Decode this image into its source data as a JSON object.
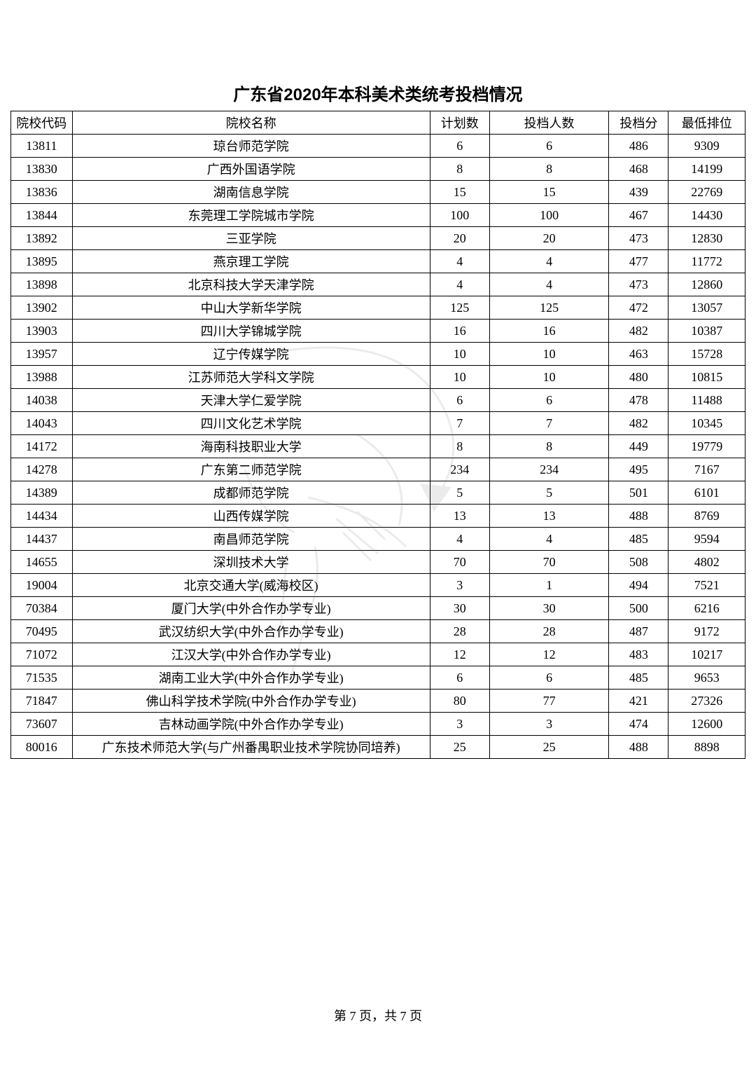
{
  "title": "广东省2020年本科美术类统考投档情况",
  "columns": [
    "院校代码",
    "院校名称",
    "计划数",
    "投档人数",
    "投档分",
    "最低排位"
  ],
  "column_widths": [
    "col-code",
    "col-name",
    "col-plan",
    "col-applicants",
    "col-score",
    "col-rank"
  ],
  "rows": [
    [
      "13811",
      "琼台师范学院",
      "6",
      "6",
      "486",
      "9309"
    ],
    [
      "13830",
      "广西外国语学院",
      "8",
      "8",
      "468",
      "14199"
    ],
    [
      "13836",
      "湖南信息学院",
      "15",
      "15",
      "439",
      "22769"
    ],
    [
      "13844",
      "东莞理工学院城市学院",
      "100",
      "100",
      "467",
      "14430"
    ],
    [
      "13892",
      "三亚学院",
      "20",
      "20",
      "473",
      "12830"
    ],
    [
      "13895",
      "燕京理工学院",
      "4",
      "4",
      "477",
      "11772"
    ],
    [
      "13898",
      "北京科技大学天津学院",
      "4",
      "4",
      "473",
      "12860"
    ],
    [
      "13902",
      "中山大学新华学院",
      "125",
      "125",
      "472",
      "13057"
    ],
    [
      "13903",
      "四川大学锦城学院",
      "16",
      "16",
      "482",
      "10387"
    ],
    [
      "13957",
      "辽宁传媒学院",
      "10",
      "10",
      "463",
      "15728"
    ],
    [
      "13988",
      "江苏师范大学科文学院",
      "10",
      "10",
      "480",
      "10815"
    ],
    [
      "14038",
      "天津大学仁爱学院",
      "6",
      "6",
      "478",
      "11488"
    ],
    [
      "14043",
      "四川文化艺术学院",
      "7",
      "7",
      "482",
      "10345"
    ],
    [
      "14172",
      "海南科技职业大学",
      "8",
      "8",
      "449",
      "19779"
    ],
    [
      "14278",
      "广东第二师范学院",
      "234",
      "234",
      "495",
      "7167"
    ],
    [
      "14389",
      "成都师范学院",
      "5",
      "5",
      "501",
      "6101"
    ],
    [
      "14434",
      "山西传媒学院",
      "13",
      "13",
      "488",
      "8769"
    ],
    [
      "14437",
      "南昌师范学院",
      "4",
      "4",
      "485",
      "9594"
    ],
    [
      "14655",
      "深圳技术大学",
      "70",
      "70",
      "508",
      "4802"
    ],
    [
      "19004",
      "北京交通大学(威海校区)",
      "3",
      "1",
      "494",
      "7521"
    ],
    [
      "70384",
      "厦门大学(中外合作办学专业)",
      "30",
      "30",
      "500",
      "6216"
    ],
    [
      "70495",
      "武汉纺织大学(中外合作办学专业)",
      "28",
      "28",
      "487",
      "9172"
    ],
    [
      "71072",
      "江汉大学(中外合作办学专业)",
      "12",
      "12",
      "483",
      "10217"
    ],
    [
      "71535",
      "湖南工业大学(中外合作办学专业)",
      "6",
      "6",
      "485",
      "9653"
    ],
    [
      "71847",
      "佛山科学技术学院(中外合作办学专业)",
      "80",
      "77",
      "421",
      "27326"
    ],
    [
      "73607",
      "吉林动画学院(中外合作办学专业)",
      "3",
      "3",
      "474",
      "12600"
    ],
    [
      "80016",
      "广东技术师范大学(与广州番禺职业技术学院协同培养)",
      "25",
      "25",
      "488",
      "8898"
    ]
  ],
  "footer": "第 7 页，共 7 页",
  "style": {
    "background_color": "#ffffff",
    "border_color": "#000000",
    "title_fontsize": 24,
    "cell_fontsize": 18,
    "footer_fontsize": 18
  }
}
